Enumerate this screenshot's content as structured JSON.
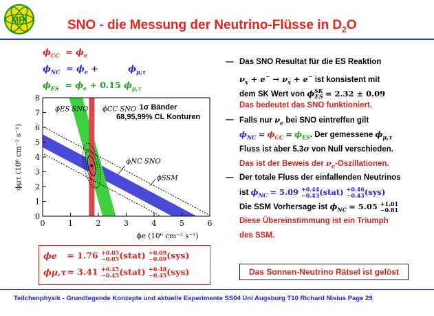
{
  "header": {
    "logo_text": "MPI",
    "title": "SNO - die Messung der Neutrino-Flüsse in D",
    "title_sub": "2",
    "title_end": "O"
  },
  "equations": {
    "cc": "ϕCC  = ϕe",
    "nc": "ϕNC  = ϕe +        ϕμ,τ",
    "es": "ϕES  = ϕe + 0.15 ϕμ,τ"
  },
  "bullets": [
    {
      "line1": "Das SNO Resultat für die ES Reaktion"
    },
    {
      "line2": "νx + e⁻ → νx + e⁻  ist konsistent mit"
    },
    {
      "line3": "dem SK Wert von ϕES SK = 2.32 ± 0.09"
    },
    {
      "line4": "Das bedeutet das SNO funktioniert."
    },
    {
      "line5": "Falls nur νe bei SNO eintreffen gilt"
    },
    {
      "line6": "ϕNC = ϕCC = ϕES. Der gemessene ϕμ,τ"
    },
    {
      "line7": "Fluss ist aber 5.3σ von Null verschieden."
    },
    {
      "line8": "Das ist der Beweis der νe-Oszillationen."
    },
    {
      "line9": "Der totale Fluss der einfallenden Neutrinos"
    },
    {
      "line10": "ist ϕNC = 5.09 +0.44 −0.43 (stat) +0.46 −0.43 (sys)"
    },
    {
      "line11": "Die SSM Vorhersage ist ϕNC = 5.05 +1.01 −0.81"
    },
    {
      "line12": "Diese Übereinstimmung ist ein Triumph"
    },
    {
      "line13": "des SSM."
    }
  ],
  "results": {
    "e_label": "ϕe",
    "e_value": "= 1.76",
    "e_stat_up": "+0.05",
    "e_stat_dn": "−0.05",
    "e_sys_up": "+0.09",
    "e_sys_dn": "−0.09",
    "mt_label": "ϕμ,τ",
    "mt_value": "= 3.41",
    "mt_stat_up": "+0.45",
    "mt_stat_dn": "−0.45",
    "mt_sys_up": "+0.48",
    "mt_sys_dn": "−0.45",
    "stat": "(stat)",
    "sys": "(sys)"
  },
  "solved_box": "Das Sonnen-Neutrino Rätsel ist gelöst",
  "footer": "Teilchenphysik - Grundlegende Konzepte und aktuelle Experimente    SS04 Uni Augsburg   T10   Richard Nisius   Page 29",
  "colors": {
    "red": "#d7261e",
    "blue": "#1f22dc",
    "green": "#19a419",
    "band_blue": "#4a4ad8",
    "band_red": "#d94a4a",
    "band_green": "#3fcf3f"
  },
  "chart_data": {
    "type": "band_plot",
    "xlabel": "ϕe (10⁶ cm⁻² s⁻¹)",
    "ylabel": "ϕμτ (10⁶ cm⁻² s⁻¹)",
    "xlim": [
      0,
      6
    ],
    "ylim": [
      0,
      8
    ],
    "xticks": [
      "0",
      "1",
      "2",
      "3",
      "4",
      "5",
      "6"
    ],
    "yticks": [
      "0",
      "1",
      "2",
      "3",
      "4",
      "5",
      "6",
      "7",
      "8"
    ],
    "annotation_title": "1σ Bänder",
    "annotation_sub": "68,95,99% CL Konturen",
    "labels": {
      "es": "ϕES SNO",
      "cc": "ϕCC SNO",
      "nc": "ϕNC SNO",
      "ssm": "ϕSSM"
    },
    "bands": [
      {
        "name": "CC",
        "type": "vertical",
        "center": 1.76,
        "width": 0.2
      },
      {
        "name": "NC",
        "total": 5.09,
        "halfwidth": 0.44
      },
      {
        "name": "ES",
        "sum": 2.39,
        "coef": 0.15,
        "halfwidth": 0.24
      }
    ],
    "ssm": {
      "total": 5.05,
      "up": 1.01,
      "down": 0.81
    },
    "best_fit": {
      "x": 1.76,
      "y": 3.41
    }
  }
}
